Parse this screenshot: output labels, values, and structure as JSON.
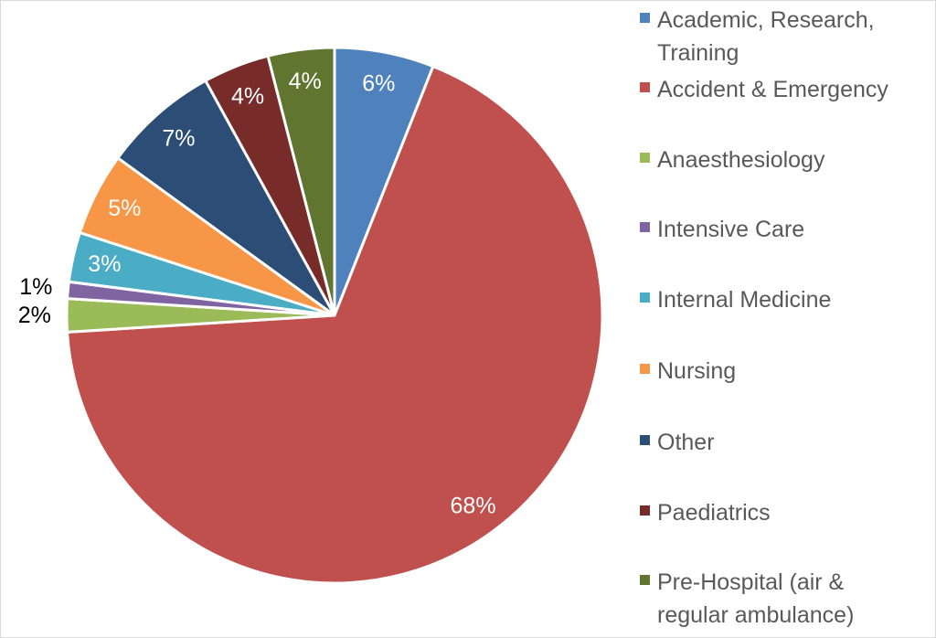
{
  "chart_data": {
    "type": "pie",
    "title": "",
    "start_angle_deg": 0,
    "direction": "clockwise",
    "legend_position": "right",
    "slices": [
      {
        "label": "Academic, Research, Training",
        "value": 6,
        "data_label": "6%",
        "color": "#4F81BD",
        "label_color": "#FFFFFF",
        "label_placement": "inside"
      },
      {
        "label": "Accident & Emergency",
        "value": 68,
        "data_label": "68%",
        "color": "#C0504D",
        "label_color": "#FFFFFF",
        "label_placement": "inside"
      },
      {
        "label": "Anaesthesiology",
        "value": 2,
        "data_label": "2%",
        "color": "#9BBB59",
        "label_color": "#000000",
        "label_placement": "outside"
      },
      {
        "label": "Intensive Care",
        "value": 1,
        "data_label": "1%",
        "color": "#8064A2",
        "label_color": "#000000",
        "label_placement": "outside"
      },
      {
        "label": "Internal Medicine",
        "value": 3,
        "data_label": "3%",
        "color": "#4BACC6",
        "label_color": "#FFFFFF",
        "label_placement": "inside"
      },
      {
        "label": "Nursing",
        "value": 5,
        "data_label": "5%",
        "color": "#F79646",
        "label_color": "#FFFFFF",
        "label_placement": "inside"
      },
      {
        "label": "Other",
        "value": 7,
        "data_label": "7%",
        "color": "#2C4D75",
        "label_color": "#FFFFFF",
        "label_placement": "inside"
      },
      {
        "label": "Paediatrics",
        "value": 4,
        "data_label": "4%",
        "color": "#772C2A",
        "label_color": "#FFFFFF",
        "label_placement": "inside"
      },
      {
        "label": "Pre-Hospital (air & regular ambulance)",
        "value": 4,
        "data_label": "4%",
        "color": "#5F7530",
        "label_color": "#FFFFFF",
        "label_placement": "inside"
      }
    ]
  }
}
